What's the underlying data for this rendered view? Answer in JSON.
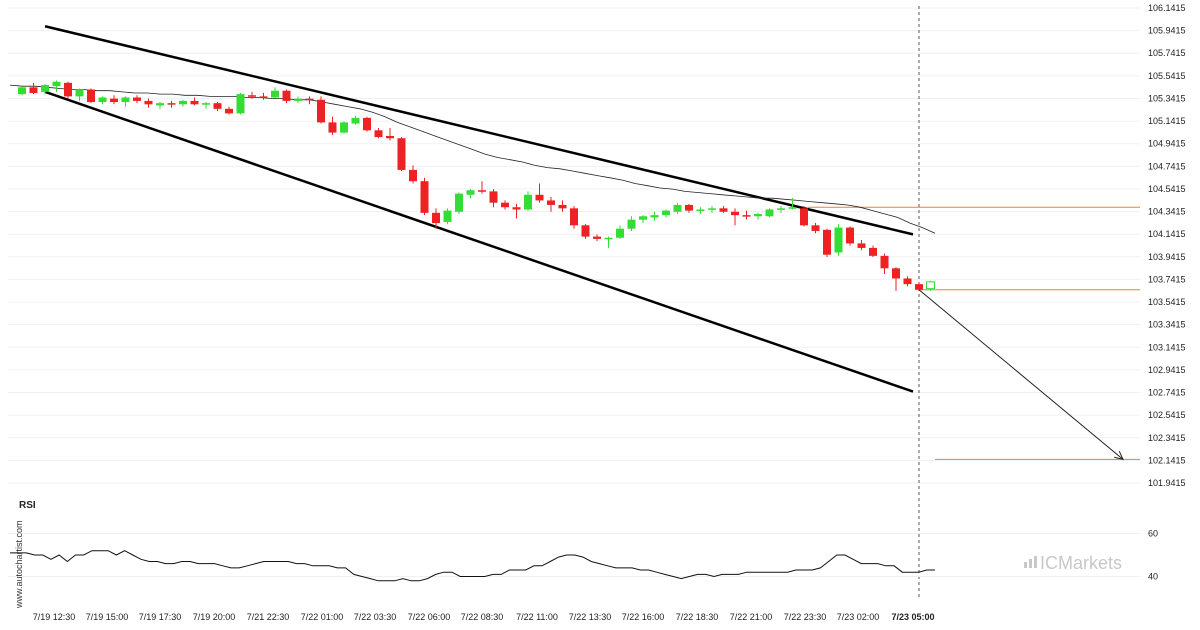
{
  "chart_data": {
    "type": "candlestick",
    "y_ticks": [
      "106.1415",
      "105.9415",
      "105.7415",
      "105.5415",
      "105.3415",
      "105.1415",
      "104.9415",
      "104.7415",
      "104.5415",
      "104.3415",
      "104.1415",
      "103.9415",
      "103.7415",
      "103.5415",
      "103.3415",
      "103.1415",
      "102.9415",
      "102.7415",
      "102.5415",
      "102.3415",
      "102.1415",
      "101.9415"
    ],
    "y_range": [
      101.9415,
      106.1415
    ],
    "x_labels": [
      "7/19 12:30",
      "7/19 15:00",
      "7/19 17:30",
      "7/19 20:00",
      "7/21 22:30",
      "7/22 01:00",
      "7/22 03:30",
      "7/22 06:00",
      "7/22 08:30",
      "7/22 11:00",
      "7/22 13:30",
      "7/22 16:00",
      "7/22 18:30",
      "7/22 21:00",
      "7/22 23:30",
      "7/23 02:00",
      "7/23 05:00"
    ],
    "highlight_label": "7/23 05:00",
    "colors": {
      "up": "#33dd33",
      "down": "#ee2222",
      "level": "#e8823c",
      "channel": "#000000"
    },
    "candles": [
      {
        "o": 105.38,
        "h": 105.45,
        "l": 105.37,
        "c": 105.44
      },
      {
        "o": 105.44,
        "h": 105.48,
        "l": 105.38,
        "c": 105.39
      },
      {
        "o": 105.4,
        "h": 105.47,
        "l": 105.38,
        "c": 105.46
      },
      {
        "o": 105.45,
        "h": 105.5,
        "l": 105.4,
        "c": 105.49
      },
      {
        "o": 105.48,
        "h": 105.49,
        "l": 105.34,
        "c": 105.36
      },
      {
        "o": 105.36,
        "h": 105.43,
        "l": 105.32,
        "c": 105.42
      },
      {
        "o": 105.42,
        "h": 105.43,
        "l": 105.3,
        "c": 105.31
      },
      {
        "o": 105.31,
        "h": 105.36,
        "l": 105.29,
        "c": 105.35
      },
      {
        "o": 105.34,
        "h": 105.37,
        "l": 105.29,
        "c": 105.31
      },
      {
        "o": 105.31,
        "h": 105.36,
        "l": 105.27,
        "c": 105.35
      },
      {
        "o": 105.35,
        "h": 105.37,
        "l": 105.3,
        "c": 105.32
      },
      {
        "o": 105.32,
        "h": 105.34,
        "l": 105.26,
        "c": 105.29
      },
      {
        "o": 105.28,
        "h": 105.31,
        "l": 105.25,
        "c": 105.3
      },
      {
        "o": 105.3,
        "h": 105.32,
        "l": 105.26,
        "c": 105.29
      },
      {
        "o": 105.29,
        "h": 105.33,
        "l": 105.27,
        "c": 105.32
      },
      {
        "o": 105.32,
        "h": 105.35,
        "l": 105.28,
        "c": 105.29
      },
      {
        "o": 105.29,
        "h": 105.31,
        "l": 105.25,
        "c": 105.3
      },
      {
        "o": 105.3,
        "h": 105.31,
        "l": 105.23,
        "c": 105.25
      },
      {
        "o": 105.25,
        "h": 105.27,
        "l": 105.2,
        "c": 105.21
      },
      {
        "o": 105.21,
        "h": 105.39,
        "l": 105.2,
        "c": 105.38
      },
      {
        "o": 105.37,
        "h": 105.4,
        "l": 105.34,
        "c": 105.36
      },
      {
        "o": 105.36,
        "h": 105.39,
        "l": 105.33,
        "c": 105.35
      },
      {
        "o": 105.35,
        "h": 105.44,
        "l": 105.34,
        "c": 105.41
      },
      {
        "o": 105.41,
        "h": 105.42,
        "l": 105.3,
        "c": 105.32
      },
      {
        "o": 105.32,
        "h": 105.36,
        "l": 105.3,
        "c": 105.34
      },
      {
        "o": 105.34,
        "h": 105.36,
        "l": 105.29,
        "c": 105.33
      },
      {
        "o": 105.33,
        "h": 105.36,
        "l": 105.12,
        "c": 105.13
      },
      {
        "o": 105.13,
        "h": 105.18,
        "l": 105.02,
        "c": 105.04
      },
      {
        "o": 105.04,
        "h": 105.14,
        "l": 105.03,
        "c": 105.13
      },
      {
        "o": 105.12,
        "h": 105.19,
        "l": 105.11,
        "c": 105.17
      },
      {
        "o": 105.17,
        "h": 105.18,
        "l": 105.05,
        "c": 105.06
      },
      {
        "o": 105.06,
        "h": 105.08,
        "l": 104.99,
        "c": 105.0
      },
      {
        "o": 105.01,
        "h": 105.08,
        "l": 104.97,
        "c": 104.99
      },
      {
        "o": 104.99,
        "h": 105.0,
        "l": 104.7,
        "c": 104.71
      },
      {
        "o": 104.71,
        "h": 104.75,
        "l": 104.59,
        "c": 104.61
      },
      {
        "o": 104.61,
        "h": 104.64,
        "l": 104.31,
        "c": 104.33
      },
      {
        "o": 104.33,
        "h": 104.37,
        "l": 104.19,
        "c": 104.24
      },
      {
        "o": 104.25,
        "h": 104.37,
        "l": 104.23,
        "c": 104.35
      },
      {
        "o": 104.34,
        "h": 104.51,
        "l": 104.32,
        "c": 104.5
      },
      {
        "o": 104.49,
        "h": 104.54,
        "l": 104.46,
        "c": 104.53
      },
      {
        "o": 104.53,
        "h": 104.61,
        "l": 104.5,
        "c": 104.52
      },
      {
        "o": 104.52,
        "h": 104.54,
        "l": 104.38,
        "c": 104.42
      },
      {
        "o": 104.42,
        "h": 104.44,
        "l": 104.36,
        "c": 104.38
      },
      {
        "o": 104.38,
        "h": 104.41,
        "l": 104.28,
        "c": 104.36
      },
      {
        "o": 104.36,
        "h": 104.52,
        "l": 104.35,
        "c": 104.49
      },
      {
        "o": 104.49,
        "h": 104.59,
        "l": 104.42,
        "c": 104.44
      },
      {
        "o": 104.44,
        "h": 104.47,
        "l": 104.34,
        "c": 104.4
      },
      {
        "o": 104.4,
        "h": 104.44,
        "l": 104.34,
        "c": 104.37
      },
      {
        "o": 104.37,
        "h": 104.39,
        "l": 104.19,
        "c": 104.22
      },
      {
        "o": 104.22,
        "h": 104.23,
        "l": 104.1,
        "c": 104.12
      },
      {
        "o": 104.12,
        "h": 104.14,
        "l": 104.08,
        "c": 104.1
      },
      {
        "o": 104.1,
        "h": 104.12,
        "l": 104.02,
        "c": 104.11
      },
      {
        "o": 104.11,
        "h": 104.22,
        "l": 104.1,
        "c": 104.19
      },
      {
        "o": 104.19,
        "h": 104.3,
        "l": 104.17,
        "c": 104.27
      },
      {
        "o": 104.27,
        "h": 104.31,
        "l": 104.24,
        "c": 104.3
      },
      {
        "o": 104.29,
        "h": 104.34,
        "l": 104.26,
        "c": 104.31
      },
      {
        "o": 104.31,
        "h": 104.36,
        "l": 104.29,
        "c": 104.35
      },
      {
        "o": 104.34,
        "h": 104.42,
        "l": 104.32,
        "c": 104.4
      },
      {
        "o": 104.4,
        "h": 104.41,
        "l": 104.33,
        "c": 104.35
      },
      {
        "o": 104.35,
        "h": 104.38,
        "l": 104.32,
        "c": 104.36
      },
      {
        "o": 104.36,
        "h": 104.39,
        "l": 104.33,
        "c": 104.37
      },
      {
        "o": 104.37,
        "h": 104.39,
        "l": 104.33,
        "c": 104.34
      },
      {
        "o": 104.34,
        "h": 104.37,
        "l": 104.22,
        "c": 104.31
      },
      {
        "o": 104.31,
        "h": 104.35,
        "l": 104.27,
        "c": 104.3
      },
      {
        "o": 104.3,
        "h": 104.33,
        "l": 104.27,
        "c": 104.32
      },
      {
        "o": 104.3,
        "h": 104.37,
        "l": 104.29,
        "c": 104.36
      },
      {
        "o": 104.36,
        "h": 104.39,
        "l": 104.33,
        "c": 104.37
      },
      {
        "o": 104.37,
        "h": 104.46,
        "l": 104.36,
        "c": 104.38
      },
      {
        "o": 104.37,
        "h": 104.39,
        "l": 104.21,
        "c": 104.22
      },
      {
        "o": 104.22,
        "h": 104.24,
        "l": 104.15,
        "c": 104.17
      },
      {
        "o": 104.18,
        "h": 104.19,
        "l": 103.94,
        "c": 103.96
      },
      {
        "o": 103.98,
        "h": 104.23,
        "l": 103.95,
        "c": 104.2
      },
      {
        "o": 104.2,
        "h": 104.21,
        "l": 104.04,
        "c": 104.06
      },
      {
        "o": 104.06,
        "h": 104.09,
        "l": 104.0,
        "c": 104.02
      },
      {
        "o": 104.02,
        "h": 104.04,
        "l": 103.94,
        "c": 103.95
      },
      {
        "o": 103.95,
        "h": 103.97,
        "l": 103.79,
        "c": 103.84
      },
      {
        "o": 103.84,
        "h": 103.85,
        "l": 103.64,
        "c": 103.75
      },
      {
        "o": 103.75,
        "h": 103.77,
        "l": 103.68,
        "c": 103.7
      },
      {
        "o": 103.7,
        "h": 103.72,
        "l": 103.64,
        "c": 103.65
      },
      {
        "o": 103.66,
        "h": 103.73,
        "l": 103.64,
        "c": 103.72
      }
    ],
    "moving_average": [
      105.46,
      105.45,
      105.45,
      105.44,
      105.43,
      105.42,
      105.42,
      105.41,
      105.41,
      105.4,
      105.39,
      105.39,
      105.38,
      105.38,
      105.37,
      105.37,
      105.36,
      105.36,
      105.36,
      105.35,
      105.35,
      105.34,
      105.34,
      105.33,
      105.33,
      105.31,
      105.29,
      105.27,
      105.25,
      105.22,
      105.18,
      105.13,
      105.09,
      105.05,
      105.01,
      104.97,
      104.93,
      104.89,
      104.85,
      104.82,
      104.8,
      104.78,
      104.75,
      104.73,
      104.72,
      104.7,
      104.68,
      104.66,
      104.64,
      104.62,
      104.59,
      104.57,
      104.55,
      104.54,
      104.52,
      104.51,
      104.5,
      104.49,
      104.48,
      104.47,
      104.46,
      104.46,
      104.45,
      104.44,
      104.43,
      104.42,
      104.41,
      104.4,
      104.38,
      104.35,
      104.32,
      104.29,
      104.24,
      104.2,
      104.15
    ],
    "channel_upper": {
      "start": 105.98,
      "end": 104.14
    },
    "channel_lower": {
      "start": 105.4,
      "end": 102.75
    },
    "levels": [
      104.38,
      103.65,
      102.15
    ],
    "forecast": {
      "from": 103.65,
      "to": 102.15
    },
    "rsi": {
      "title": "RSI",
      "ticks": [
        "60",
        "40"
      ],
      "range": [
        30,
        70
      ],
      "values": [
        51,
        51,
        51,
        50,
        50,
        48,
        50,
        47,
        50,
        50,
        52,
        52,
        52,
        50,
        52,
        50,
        48,
        47,
        47,
        46,
        46,
        47,
        47,
        46,
        46,
        46,
        45,
        44,
        44,
        45,
        46,
        47,
        47,
        47,
        47,
        46,
        46,
        45,
        45,
        45,
        44,
        44,
        41,
        40,
        39,
        38,
        38,
        38,
        39,
        38,
        38,
        39,
        41,
        42,
        42,
        40,
        40,
        40,
        40,
        41,
        41,
        43,
        43,
        43,
        45,
        45,
        47,
        49,
        50,
        50,
        49,
        47,
        46,
        45,
        44,
        44,
        44,
        43,
        43,
        42,
        41,
        40,
        39,
        40,
        41,
        41,
        40,
        41,
        41,
        41,
        42,
        42,
        42,
        42,
        42,
        42,
        43,
        43,
        43,
        44,
        47,
        50,
        50,
        48,
        46,
        46,
        46,
        45,
        45,
        42,
        42,
        42,
        43,
        43
      ]
    }
  },
  "watermark": {
    "brand_text": "ICMarkets",
    "site_credit": "www.autochartist.com"
  }
}
